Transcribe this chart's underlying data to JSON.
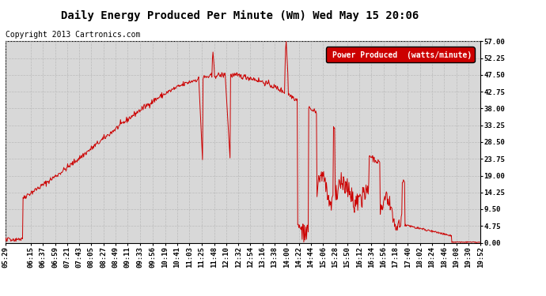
{
  "title": "Daily Energy Produced Per Minute (Wm) Wed May 15 20:06",
  "copyright": "Copyright 2013 Cartronics.com",
  "legend_label": "Power Produced  (watts/minute)",
  "legend_bg": "#cc0000",
  "legend_fg": "#ffffff",
  "line_color": "#cc0000",
  "bg_color": "#ffffff",
  "plot_bg_color": "#d8d8d8",
  "grid_color": "#bbbbbb",
  "ylim": [
    0,
    57.0
  ],
  "yticks": [
    0.0,
    4.75,
    9.5,
    14.25,
    19.0,
    23.75,
    28.5,
    33.25,
    38.0,
    42.75,
    47.5,
    52.25,
    57.0
  ],
  "title_fontsize": 10,
  "tick_fontsize": 6.5,
  "copyright_fontsize": 7
}
